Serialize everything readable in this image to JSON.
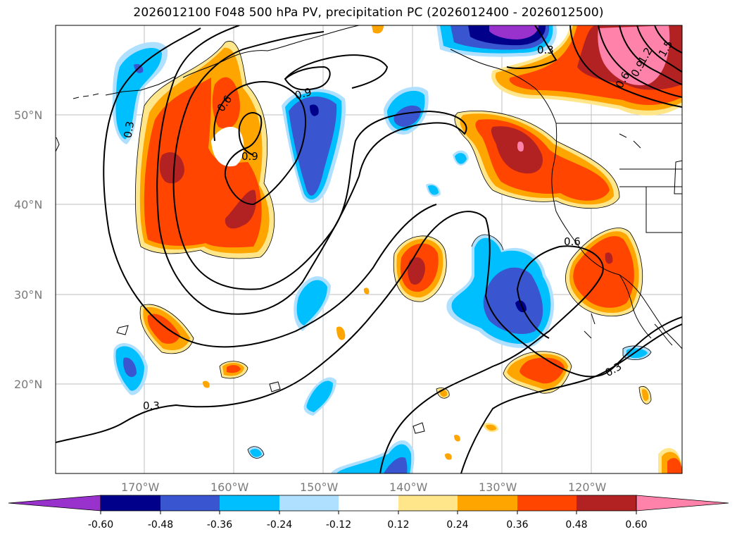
{
  "title": "2026012100 F048 500 hPa PV, precipitation PC (2026012400 - 2026012500)",
  "colors": {
    "neg_extreme": "#9932cc",
    "neg_4": "#00008b",
    "neg_3": "#3a55d0",
    "neg_2": "#00bfff",
    "neg_1": "#b0e0ff",
    "zero": "#ffffff",
    "pos_1": "#ffe68a",
    "pos_2": "#ffa500",
    "pos_3": "#ff4500",
    "pos_4": "#b22222",
    "pos_extreme": "#ff82ab",
    "grid": "#bfbfbf",
    "coast": "#000000",
    "contour": "#000000"
  },
  "map": {
    "lat_labels": [
      "50°N",
      "40°N",
      "30°N",
      "20°N"
    ],
    "lon_labels": [
      "170°W",
      "160°W",
      "150°W",
      "140°W",
      "130°W",
      "120°W"
    ],
    "contour_labels": [
      {
        "text": "0.3",
        "id": "c1"
      },
      {
        "text": "0.6",
        "id": "c2"
      },
      {
        "text": "0.9",
        "id": "c3"
      },
      {
        "text": "0.9",
        "id": "c4"
      },
      {
        "text": "0.3",
        "id": "c5"
      },
      {
        "text": "0.6",
        "id": "c6"
      },
      {
        "text": "0.3",
        "id": "c7"
      },
      {
        "text": "0.3",
        "id": "c8"
      },
      {
        "text": "0.6",
        "id": "c9"
      },
      {
        "text": "0.9",
        "id": "c10"
      },
      {
        "text": "1.2",
        "id": "c11"
      },
      {
        "text": "1.5",
        "id": "c12"
      }
    ]
  },
  "colorbar": {
    "ticks": [
      "-0.60",
      "-0.48",
      "-0.36",
      "-0.24",
      "-0.12",
      "0.12",
      "0.24",
      "0.36",
      "0.48",
      "0.60"
    ]
  }
}
